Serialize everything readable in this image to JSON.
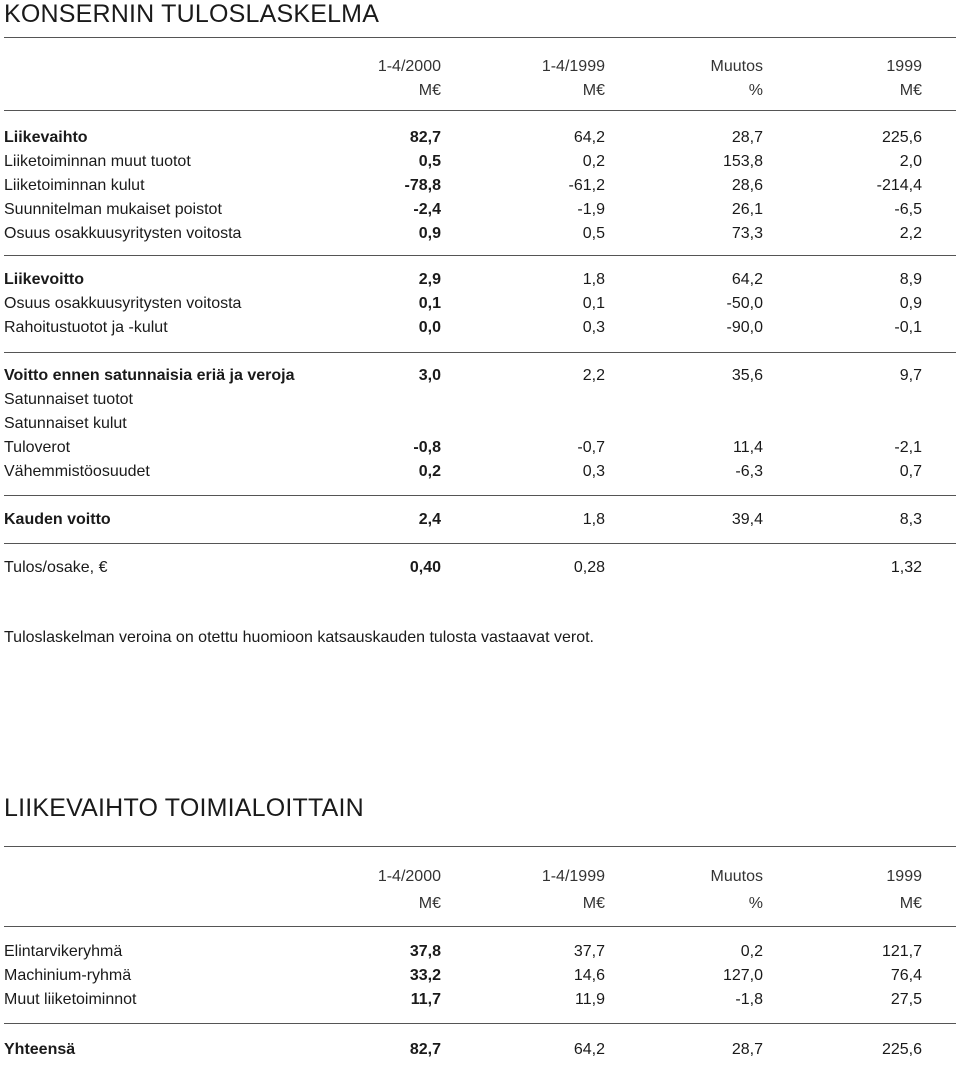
{
  "income": {
    "title": "KONSERNIN TULOSLASKELMA",
    "header1": [
      "1-4/2000",
      "1-4/1999",
      "Muutos",
      "1999"
    ],
    "header2": [
      "M€",
      "M€",
      "%",
      "M€"
    ],
    "rows": [
      {
        "label": "Liikevaihto",
        "v": [
          "82,7",
          "64,2",
          "28,7",
          "225,6"
        ]
      },
      {
        "label": "Liiketoiminnan muut tuotot",
        "v": [
          "0,5",
          "0,2",
          "153,8",
          "2,0"
        ]
      },
      {
        "label": "Liiketoiminnan kulut",
        "v": [
          "-78,8",
          "-61,2",
          "28,6",
          "-214,4"
        ]
      },
      {
        "label": "Suunnitelman mukaiset poistot",
        "v": [
          "-2,4",
          "-1,9",
          "26,1",
          "-6,5"
        ]
      },
      {
        "label": "Osuus osakkuusyritysten voitosta",
        "v": [
          "0,9",
          "0,5",
          "73,3",
          "2,2"
        ]
      },
      {
        "label": "Liikevoitto",
        "v": [
          "2,9",
          "1,8",
          "64,2",
          "8,9"
        ]
      },
      {
        "label": "Osuus osakkuusyritysten voitosta",
        "v": [
          "0,1",
          "0,1",
          "-50,0",
          "0,9"
        ]
      },
      {
        "label": "Rahoitustuotot ja -kulut",
        "v": [
          "0,0",
          "0,3",
          "-90,0",
          "-0,1"
        ]
      },
      {
        "label": "Voitto ennen satunnaisia eriä ja veroja",
        "v": [
          "3,0",
          "2,2",
          "35,6",
          "9,7"
        ]
      },
      {
        "label": "Satunnaiset tuotot",
        "v": [
          "",
          "",
          "",
          ""
        ]
      },
      {
        "label": "Satunnaiset kulut",
        "v": [
          "",
          "",
          "",
          ""
        ]
      },
      {
        "label": "Tuloverot",
        "v": [
          "-0,8",
          "-0,7",
          "11,4",
          "-2,1"
        ]
      },
      {
        "label": "Vähemmistöosuudet",
        "v": [
          "0,2",
          "0,3",
          "-6,3",
          "0,7"
        ]
      },
      {
        "label": "Kauden voitto",
        "v": [
          "2,4",
          "1,8",
          "39,4",
          "8,3"
        ]
      },
      {
        "label": "Tulos/osake, €",
        "v": [
          "0,40",
          "0,28",
          "",
          "1,32"
        ]
      }
    ],
    "note": "Tuloslaskelman veroina on otettu huomioon katsauskauden tulosta vastaavat verot."
  },
  "segments": {
    "title": "LIIKEVAIHTO TOIMIALOITTAIN",
    "header1": [
      "1-4/2000",
      "1-4/1999",
      "Muutos",
      "1999"
    ],
    "header2": [
      "M€",
      "M€",
      "%",
      "M€"
    ],
    "rows": [
      {
        "label": "Elintarvikeryhmä",
        "v": [
          "37,8",
          "37,7",
          "0,2",
          "121,7"
        ]
      },
      {
        "label": "Machinium-ryhmä",
        "v": [
          "33,2",
          "14,6",
          "127,0",
          "76,4"
        ]
      },
      {
        "label": "Muut liiketoiminnot",
        "v": [
          "11,7",
          "11,9",
          "-1,8",
          "27,5"
        ]
      },
      {
        "label": "Yhteensä",
        "v": [
          "82,7",
          "64,2",
          "28,7",
          "225,6"
        ]
      }
    ]
  }
}
